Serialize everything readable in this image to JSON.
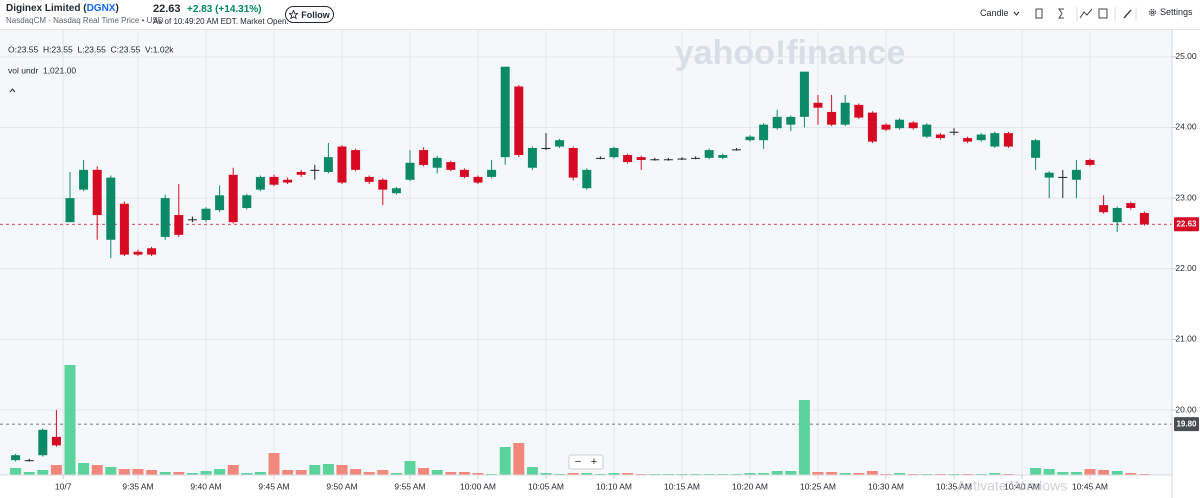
{
  "header": {
    "title_prefix": "Diginex Limited (",
    "symbol": "DGNX",
    "title_suffix": ")",
    "exchange": "NasdaqCM - Nasdaq Real Time Price • USD",
    "price": "22.63",
    "change": "+2.83 (+14.31%)",
    "as_of": "As of 10:49:20 AM EDT. Market Open.",
    "follow": "Follow",
    "chart_type_menu": "Candle",
    "settings": "Settings"
  },
  "chart_data": {
    "type": "candlestick",
    "watermark": "yahoo!finance",
    "ohlc_readout": "O:23.55  H:23.55  L:23.55  C:23.55  V:1.02k",
    "volume_readout": "vol undr  1,021.00",
    "zoom": [
      "−",
      "+"
    ],
    "os_overlay": "Activate Windows",
    "x": [
      566,
      567,
      568,
      569,
      570,
      571,
      572,
      573,
      574,
      575,
      576,
      577,
      578,
      579,
      580,
      581,
      582,
      583,
      584,
      585,
      586,
      587,
      588,
      589,
      590,
      591,
      592,
      593,
      594,
      595,
      596,
      597,
      598,
      599,
      600,
      601,
      602,
      603,
      604,
      605,
      606,
      607,
      608,
      609,
      610,
      611,
      612,
      613,
      614,
      615,
      616,
      617,
      618,
      619,
      620,
      621,
      622,
      623,
      624,
      625,
      626,
      627,
      628,
      629,
      630,
      631,
      632,
      633,
      634,
      635,
      636,
      637,
      638,
      639,
      641,
      642,
      643,
      644,
      645,
      646,
      647,
      648,
      649
    ],
    "open": [
      19.29,
      19.29,
      19.36,
      19.62,
      22.66,
      23.12,
      23.4,
      22.41,
      22.92,
      22.24,
      22.29,
      22.45,
      22.76,
      22.7,
      22.69,
      22.83,
      23.33,
      22.86,
      23.12,
      23.3,
      23.26,
      23.37,
      23.4,
      23.37,
      23.73,
      23.68,
      23.3,
      23.26,
      23.07,
      23.26,
      23.68,
      23.43,
      23.51,
      23.4,
      23.3,
      23.3,
      23.58,
      24.58,
      23.43,
      23.71,
      23.73,
      23.71,
      23.14,
      23.57,
      23.58,
      23.61,
      23.58,
      23.55,
      23.55,
      23.56,
      23.57,
      23.57,
      23.57,
      23.69,
      23.82,
      23.82,
      23.99,
      24.04,
      24.15,
      24.35,
      24.22,
      24.04,
      24.32,
      24.21,
      24.04,
      23.99,
      24.07,
      23.87,
      23.9,
      23.94,
      23.85,
      23.82,
      23.73,
      23.92,
      23.57,
      23.29,
      23.3,
      23.26,
      23.54,
      22.9,
      22.66,
      22.93,
      22.79
    ],
    "high": [
      19.38,
      19.31,
      19.74,
      20.0,
      23.37,
      23.54,
      23.45,
      23.32,
      22.95,
      22.27,
      22.31,
      23.05,
      23.2,
      22.74,
      22.87,
      23.18,
      23.43,
      23.06,
      23.32,
      23.33,
      23.29,
      23.4,
      23.47,
      23.78,
      23.75,
      23.7,
      23.32,
      23.28,
      23.16,
      23.68,
      23.72,
      23.6,
      23.53,
      23.42,
      23.32,
      23.54,
      24.86,
      24.6,
      23.73,
      23.92,
      23.84,
      23.73,
      23.42,
      23.59,
      23.73,
      23.63,
      23.6,
      23.57,
      23.57,
      23.58,
      23.59,
      23.7,
      23.63,
      23.71,
      23.89,
      24.06,
      24.25,
      24.17,
      24.79,
      24.46,
      24.46,
      24.46,
      24.34,
      24.23,
      24.06,
      24.13,
      24.09,
      24.06,
      23.92,
      23.99,
      23.87,
      23.92,
      23.94,
      23.94,
      23.84,
      23.38,
      23.4,
      23.54,
      23.56,
      23.04,
      22.88,
      22.95,
      22.81
    ],
    "low": [
      19.27,
      19.27,
      19.34,
      19.48,
      22.66,
      23.1,
      22.41,
      22.15,
      22.18,
      22.18,
      22.18,
      22.41,
      22.45,
      22.66,
      22.66,
      22.8,
      22.64,
      22.84,
      23.1,
      23.17,
      23.2,
      23.3,
      23.26,
      23.35,
      23.2,
      23.38,
      23.2,
      22.9,
      23.05,
      23.24,
      23.45,
      23.35,
      23.38,
      23.28,
      23.2,
      23.28,
      23.47,
      23.58,
      23.4,
      23.68,
      23.71,
      23.25,
      23.12,
      23.55,
      23.56,
      23.49,
      23.4,
      23.53,
      23.53,
      23.54,
      23.55,
      23.55,
      23.55,
      23.67,
      23.8,
      23.7,
      23.97,
      23.95,
      24.0,
      24.04,
      24.02,
      24.02,
      24.12,
      23.78,
      23.95,
      23.97,
      23.97,
      23.85,
      23.83,
      23.89,
      23.78,
      23.8,
      23.71,
      23.71,
      23.4,
      23.0,
      23.0,
      23.0,
      23.45,
      22.78,
      22.52,
      22.84,
      22.61
    ],
    "close": [
      19.36,
      19.29,
      19.72,
      19.5,
      23.0,
      23.4,
      22.76,
      23.29,
      22.2,
      22.2,
      22.2,
      23.0,
      22.48,
      22.7,
      22.85,
      23.04,
      22.66,
      23.04,
      23.3,
      23.19,
      23.22,
      23.33,
      23.4,
      23.58,
      23.22,
      23.4,
      23.23,
      23.12,
      23.14,
      23.5,
      23.47,
      23.57,
      23.4,
      23.3,
      23.22,
      23.4,
      24.86,
      23.61,
      23.71,
      23.71,
      23.82,
      23.29,
      23.4,
      23.57,
      23.71,
      23.51,
      23.54,
      23.55,
      23.55,
      23.56,
      23.57,
      23.68,
      23.61,
      23.69,
      23.87,
      24.04,
      24.15,
      24.15,
      24.79,
      24.28,
      24.04,
      24.35,
      24.14,
      23.8,
      23.97,
      24.11,
      23.99,
      24.04,
      23.85,
      23.94,
      23.8,
      23.9,
      23.92,
      23.73,
      23.82,
      23.36,
      23.3,
      23.4,
      23.47,
      22.8,
      22.86,
      22.86,
      22.63
    ],
    "volume": [
      7,
      3,
      5,
      10,
      110,
      12,
      10,
      8,
      6,
      6,
      5,
      3,
      3,
      2,
      4,
      6,
      10,
      2,
      3,
      22,
      5,
      5,
      10,
      11,
      10,
      6,
      3,
      5,
      2,
      14,
      7,
      5,
      3,
      3,
      2,
      1,
      28,
      32,
      8,
      2,
      1,
      2,
      2,
      1,
      2,
      2,
      1,
      1,
      1,
      1,
      1,
      1,
      1,
      1,
      2,
      2,
      4,
      4,
      75,
      3,
      3,
      2,
      2,
      4,
      1,
      2,
      1,
      1,
      1,
      1,
      1,
      1,
      2,
      1,
      7,
      6,
      3,
      3,
      6,
      5,
      4,
      2,
      1
    ],
    "up_color": "#0c8a68",
    "down_color": "#d60a22",
    "flat_color": "#222222",
    "volume_up_color": "#5ad39c",
    "volume_down_color": "#f4877c",
    "xlim": [
      565,
      651
    ],
    "xticks": [
      {
        "value": 569.5,
        "label": "10/7"
      },
      {
        "value": 575,
        "label": "9:35 AM"
      },
      {
        "value": 580,
        "label": "9:40 AM"
      },
      {
        "value": 585,
        "label": "9:45 AM"
      },
      {
        "value": 590,
        "label": "9:50 AM"
      },
      {
        "value": 595,
        "label": "9:55 AM"
      },
      {
        "value": 600,
        "label": "10:00 AM"
      },
      {
        "value": 605,
        "label": "10:05 AM"
      },
      {
        "value": 610,
        "label": "10:10 AM"
      },
      {
        "value": 615,
        "label": "10:15 AM"
      },
      {
        "value": 620,
        "label": "10:20 AM"
      },
      {
        "value": 625,
        "label": "10:25 AM"
      },
      {
        "value": 630,
        "label": "10:30 AM"
      },
      {
        "value": 635,
        "label": "10:35 AM"
      },
      {
        "value": 640,
        "label": "10:40 AM"
      },
      {
        "value": 645,
        "label": "10:45 AM"
      }
    ],
    "ylim": [
      19.08,
      25.38
    ],
    "yticks": [
      {
        "value": 20,
        "label": "20.00"
      },
      {
        "value": 21,
        "label": "21.00"
      },
      {
        "value": 22,
        "label": "22.00"
      },
      {
        "value": 23,
        "label": "23.00"
      },
      {
        "value": 24,
        "label": "24.00"
      },
      {
        "value": 25,
        "label": "25.00"
      }
    ],
    "volume_lim": [
      0,
      140
    ],
    "grid": true,
    "reference_lines": [
      {
        "value": 22.63,
        "color": "#d60a22"
      },
      {
        "value": 19.8,
        "label": "19.80",
        "color": "#4a4f55"
      }
    ]
  }
}
